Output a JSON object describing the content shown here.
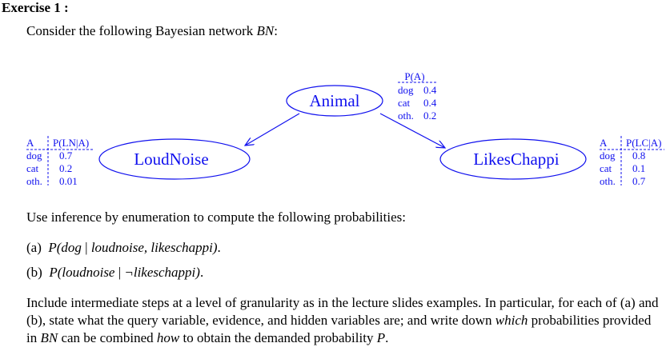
{
  "exercise_title": "Exercise 1 :",
  "intro": {
    "text": "Consider the following Bayesian network ",
    "symbol": "BN",
    "end": ":"
  },
  "network": {
    "nodes": {
      "animal": "Animal",
      "loudnoise": "LoudNoise",
      "likeschappi": "LikesChappi"
    },
    "cpt_animal": {
      "header": "P(A)",
      "rows": [
        {
          "value": "dog",
          "prob": "0.4"
        },
        {
          "value": "cat",
          "prob": "0.4"
        },
        {
          "value": "oth.",
          "prob": "0.2"
        }
      ]
    },
    "cpt_loudnoise": {
      "header_var": "A",
      "header_prob": "P(LN|A)",
      "rows": [
        {
          "value": "dog",
          "prob": "0.7"
        },
        {
          "value": "cat",
          "prob": "0.2"
        },
        {
          "value": "oth.",
          "prob": "0.01"
        }
      ]
    },
    "cpt_likeschappi": {
      "header_var": "A",
      "header_prob": "P(LC|A)",
      "rows": [
        {
          "value": "dog",
          "prob": "0.8"
        },
        {
          "value": "cat",
          "prob": "0.1"
        },
        {
          "value": "oth.",
          "prob": "0.7"
        }
      ]
    },
    "colors": {
      "network": "#1010ee"
    }
  },
  "instruction": "Use inference by enumeration to compute the following probabilities:",
  "questions": [
    {
      "label": "(a)",
      "expr_open": "P(",
      "query": "dog",
      "bar": " | ",
      "evidence": "loudnoise, likeschappi",
      "expr_close": ")",
      "end": "."
    },
    {
      "label": "(b)",
      "expr_open": "P(",
      "query": "loudnoise",
      "bar": " | ",
      "evidence": "¬likeschappi",
      "expr_close": ")",
      "end": "."
    }
  ],
  "closing": {
    "part1": "Include intermediate steps at a level of granularity as in the lecture slides examples. In particular, for each of (a) and (b), state what the query variable, evidence, and hidden variables are; and write down ",
    "which": "which",
    "part2": " probabilities provided in ",
    "bn": "BN",
    "part3": " can be combined ",
    "how": "how",
    "part4": " to obtain the demanded probability ",
    "p": "P",
    "part5": "."
  }
}
